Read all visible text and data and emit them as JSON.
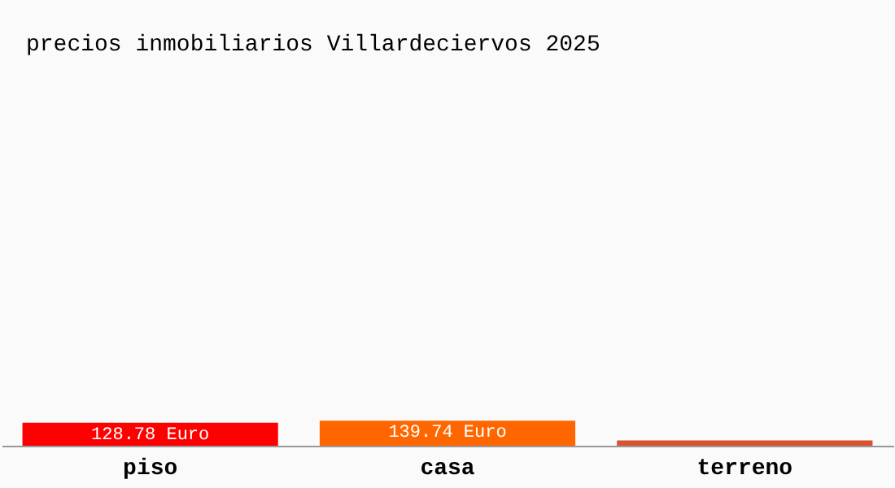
{
  "chart_data": {
    "type": "bar",
    "title": "precios inmobiliarios Villardeciervos 2025",
    "categories": [
      "piso",
      "casa",
      "terreno"
    ],
    "values": [
      128.78,
      139.74,
      30
    ],
    "colors": [
      "#ff0000",
      "#ff6600",
      "#d9532f"
    ],
    "value_labels": [
      "128.78 Euro",
      "139.74 Euro",
      null
    ],
    "grid": false,
    "legend": false
  }
}
